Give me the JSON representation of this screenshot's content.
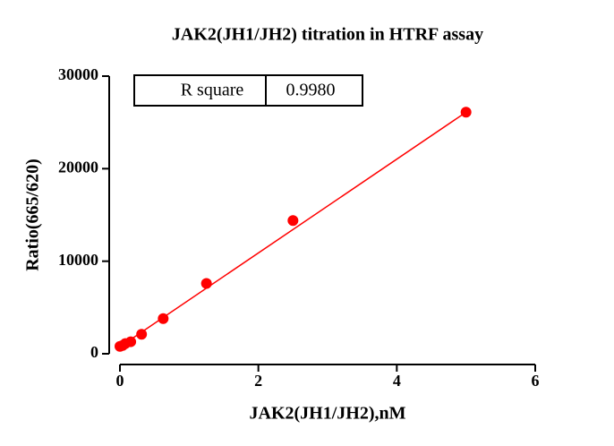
{
  "chart_data": {
    "type": "scatter",
    "title": "JAK2(JH1/JH2) titration in HTRF assay",
    "x_label": "JAK2(JH1/JH2),nM",
    "y_label": "Ratio(665/620)",
    "x": [
      0,
      0.039,
      0.078,
      0.156,
      0.3125,
      0.625,
      1.25,
      2.5,
      5
    ],
    "values": [
      800,
      900,
      1100,
      1300,
      2100,
      3800,
      7600,
      14400,
      26100
    ],
    "color": "#ff0000",
    "fit": {
      "slope": 5070,
      "intercept": 750
    },
    "xlim": [
      0,
      6
    ],
    "xticks": [
      0,
      2,
      4,
      6
    ],
    "ylim": [
      0,
      30000
    ],
    "yticks": [
      0,
      10000,
      20000,
      30000
    ],
    "stats_table": [
      "R square",
      "0.9980"
    ]
  }
}
